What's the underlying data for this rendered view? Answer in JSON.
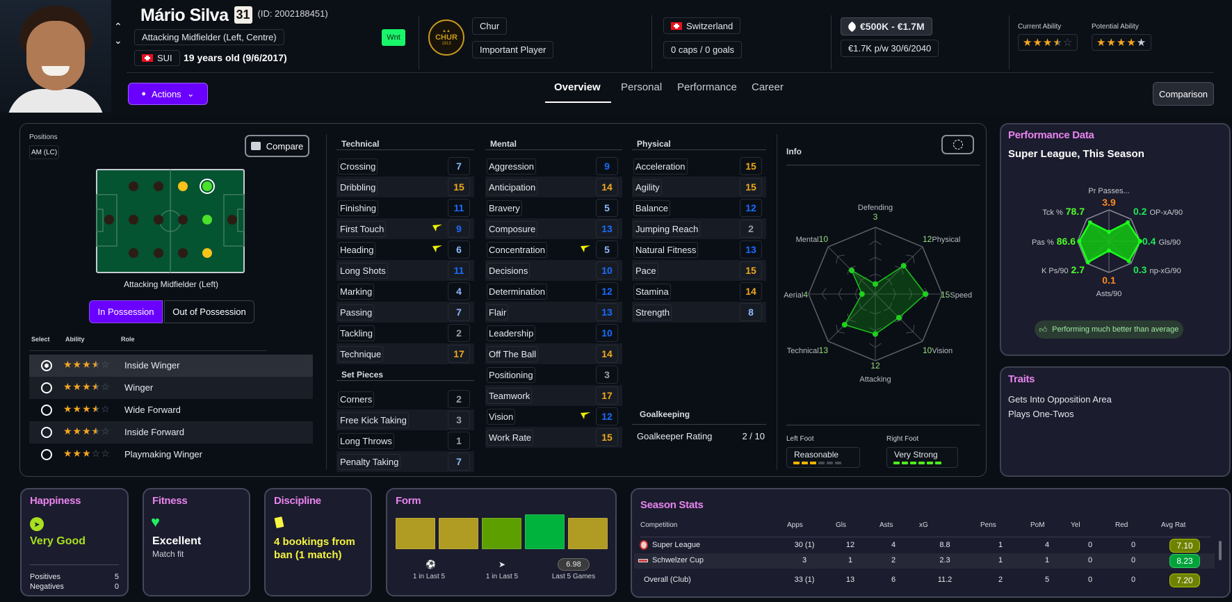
{
  "header": {
    "player_name": "Mário Silva",
    "squad_number": "31",
    "player_id": "(ID: 2002188451)",
    "position": "Attacking Midfielder (Left, Centre)",
    "nationality_code": "SUI",
    "age": "19 years old (9/6/2017)",
    "status_badge": "Wnt",
    "status_badge_color": "#19f56a",
    "club": "Chur",
    "club_logo_text": "CHUR",
    "club_logo_year": "1913",
    "squad_status": "Important Player",
    "nation": "Switzerland",
    "caps": "0 caps / 0 goals",
    "value": "€500K - €1.7M",
    "wage_contract": "€1.7K p/w 30/6/2040",
    "current_ability_label": "Current Ability",
    "current_ability_stars": 3.5,
    "potential_ability_label": "Potential Ability",
    "potential_ability_stars": 4,
    "potential_ability_range_max": 5,
    "actions_label": "Actions",
    "tabs": [
      {
        "label": "Overview",
        "active": true
      },
      {
        "label": "Personal",
        "active": false
      },
      {
        "label": "Performance",
        "active": false
      },
      {
        "label": "Career",
        "active": false
      }
    ],
    "comparison_label": "Comparison",
    "accent_color": "#6a00ff"
  },
  "positions": {
    "label": "Positions",
    "value": "AM (LC)",
    "compare_label": "Compare",
    "pitch_caption": "Attacking Midfielder (Left)",
    "pitch_rows": [
      [
        "none",
        "none",
        "accomplished",
        "selected"
      ],
      [
        "gk",
        "none",
        "none",
        "none",
        "natural",
        "gk"
      ],
      [
        "none",
        "none",
        "none",
        "accomplished"
      ]
    ],
    "toggle": [
      "In Possession",
      "Out of Possession"
    ],
    "toggle_active": 0,
    "role_headers": [
      "Select",
      "Ability",
      "Role"
    ],
    "roles": [
      {
        "name": "Inside Winger",
        "stars": 3.5,
        "selected": true
      },
      {
        "name": "Winger",
        "stars": 3.5,
        "selected": false
      },
      {
        "name": "Wide Forward",
        "stars": 3.5,
        "selected": false
      },
      {
        "name": "Inside Forward",
        "stars": 3.5,
        "selected": false
      },
      {
        "name": "Playmaking Winger",
        "stars": 3,
        "selected": false
      }
    ]
  },
  "attributes": {
    "technical": {
      "title": "Technical",
      "items": [
        {
          "name": "Crossing",
          "value": 7
        },
        {
          "name": "Dribbling",
          "value": 15
        },
        {
          "name": "Finishing",
          "value": 11
        },
        {
          "name": "First Touch",
          "value": 9,
          "key": true
        },
        {
          "name": "Heading",
          "value": 6,
          "key": true
        },
        {
          "name": "Long Shots",
          "value": 11
        },
        {
          "name": "Marking",
          "value": 4
        },
        {
          "name": "Passing",
          "value": 7
        },
        {
          "name": "Tackling",
          "value": 2
        },
        {
          "name": "Technique",
          "value": 17
        }
      ]
    },
    "set_pieces": {
      "title": "Set Pieces",
      "items": [
        {
          "name": "Corners",
          "value": 2
        },
        {
          "name": "Free Kick Taking",
          "value": 3
        },
        {
          "name": "Long Throws",
          "value": 1
        },
        {
          "name": "Penalty Taking",
          "value": 7
        }
      ]
    },
    "mental": {
      "title": "Mental",
      "items": [
        {
          "name": "Aggression",
          "value": 9
        },
        {
          "name": "Anticipation",
          "value": 14
        },
        {
          "name": "Bravery",
          "value": 5
        },
        {
          "name": "Composure",
          "value": 13
        },
        {
          "name": "Concentration",
          "value": 5,
          "key": true
        },
        {
          "name": "Decisions",
          "value": 10
        },
        {
          "name": "Determination",
          "value": 12
        },
        {
          "name": "Flair",
          "value": 13
        },
        {
          "name": "Leadership",
          "value": 10
        },
        {
          "name": "Off The Ball",
          "value": 14
        },
        {
          "name": "Positioning",
          "value": 3
        },
        {
          "name": "Teamwork",
          "value": 17
        },
        {
          "name": "Vision",
          "value": 12,
          "key": true
        },
        {
          "name": "Work Rate",
          "value": 15
        }
      ]
    },
    "physical": {
      "title": "Physical",
      "items": [
        {
          "name": "Acceleration",
          "value": 15
        },
        {
          "name": "Agility",
          "value": 15
        },
        {
          "name": "Balance",
          "value": 12
        },
        {
          "name": "Jumping Reach",
          "value": 2
        },
        {
          "name": "Natural Fitness",
          "value": 13
        },
        {
          "name": "Pace",
          "value": 15
        },
        {
          "name": "Stamina",
          "value": 14
        },
        {
          "name": "Strength",
          "value": 8
        }
      ]
    },
    "goalkeeping": {
      "title": "Goalkeeping",
      "rating_label": "Goalkeeper Rating",
      "rating_value": "2 / 10"
    },
    "colors": {
      "low": "#9aa0aa",
      "mid": "#8fb8ff",
      "good": "#1a6cff",
      "high": "#f0a81c",
      "key_icon": "#f2f200"
    }
  },
  "info": {
    "title": "Info",
    "radar": {
      "max": 20,
      "axes": [
        {
          "name": "Defending",
          "value": 3
        },
        {
          "name": "Physical",
          "value": 12
        },
        {
          "name": "Speed",
          "value": 15
        },
        {
          "name": "Vision",
          "value": 10
        },
        {
          "name": "Attacking",
          "value": 12
        },
        {
          "name": "Technical",
          "value": 13
        },
        {
          "name": "Aerial",
          "value": 4
        },
        {
          "name": "Mental",
          "value": 10
        }
      ]
    },
    "left_foot_label": "Left Foot",
    "left_foot": "Reasonable",
    "left_foot_level": 3,
    "right_foot_label": "Right Foot",
    "right_foot": "Very Strong",
    "right_foot_level": 6,
    "foot_scale_max": 6
  },
  "performance": {
    "title": "Performance Data",
    "subtitle": "Super League, This Season",
    "metrics": [
      {
        "label": "Pr Passes...",
        "value": "3.9",
        "color": "#ff8a1f",
        "percentile": 0.3
      },
      {
        "label": "OP-xA/90",
        "value": "0.2",
        "color": "#1fe85a",
        "percentile": 0.85
      },
      {
        "label": "Gls/90",
        "value": "0.4",
        "color": "#1fe85a",
        "percentile": 1.0
      },
      {
        "label": "np-xG/90",
        "value": "0.3",
        "color": "#1fe85a",
        "percentile": 0.9
      },
      {
        "label": "Asts/90",
        "value": "0.1",
        "color": "#ff8a1f",
        "percentile": 0.3
      },
      {
        "label": "K Ps/90",
        "value": "2.7",
        "color": "#4dff2a",
        "percentile": 0.95
      },
      {
        "label": "Pas %",
        "value": "86.6",
        "color": "#4dff2a",
        "percentile": 0.95
      },
      {
        "label": "Tck %",
        "value": "78.7",
        "color": "#4dff2a",
        "percentile": 0.85
      }
    ],
    "verdict": "Performing much better than average"
  },
  "traits": {
    "title": "Traits",
    "items": [
      "Gets Into Opposition Area",
      "Plays One-Twos"
    ]
  },
  "happiness": {
    "title": "Happiness",
    "status": "Very Good",
    "positives_label": "Positives",
    "positives": "5",
    "negatives_label": "Negatives",
    "negatives": "0"
  },
  "fitness": {
    "title": "Fitness",
    "status": "Excellent",
    "detail": "Match fit"
  },
  "discipline": {
    "title": "Discipline",
    "status": "4 bookings from ban (1 match)"
  },
  "form": {
    "title": "Form",
    "blocks": [
      "#b09c22",
      "#b09c22",
      "#5e9f00",
      "#00b33c",
      "#b09c22"
    ],
    "goals": "1 in Last 5",
    "assists": "1 in Last 5",
    "avg_rating": "6.98",
    "avg_label": "Last 5 Games"
  },
  "season_stats": {
    "title": "Season Stats",
    "columns": [
      "Competition",
      "Apps",
      "Gls",
      "Asts",
      "xG",
      "Pens",
      "PoM",
      "Yel",
      "Red",
      "Avg Rat"
    ],
    "rows": [
      {
        "competition": "Super League",
        "apps": "30 (1)",
        "gls": "12",
        "asts": "4",
        "xg": "8.8",
        "pens": "1",
        "pom": "4",
        "yel": "0",
        "red": "0",
        "rating": "7.10",
        "rating_color": "#6f8200"
      },
      {
        "competition": "Schwelzer Cup",
        "apps": "3",
        "gls": "1",
        "asts": "2",
        "xg": "2.3",
        "pens": "1",
        "pom": "1",
        "yel": "0",
        "red": "0",
        "rating": "8.23",
        "rating_color": "#00a23c"
      },
      {
        "competition": "Overall (Club)",
        "apps": "33 (1)",
        "gls": "13",
        "asts": "6",
        "xg": "11.2",
        "pens": "2",
        "pom": "5",
        "yel": "0",
        "red": "0",
        "rating": "7.20",
        "rating_color": "#6f8200"
      }
    ]
  }
}
